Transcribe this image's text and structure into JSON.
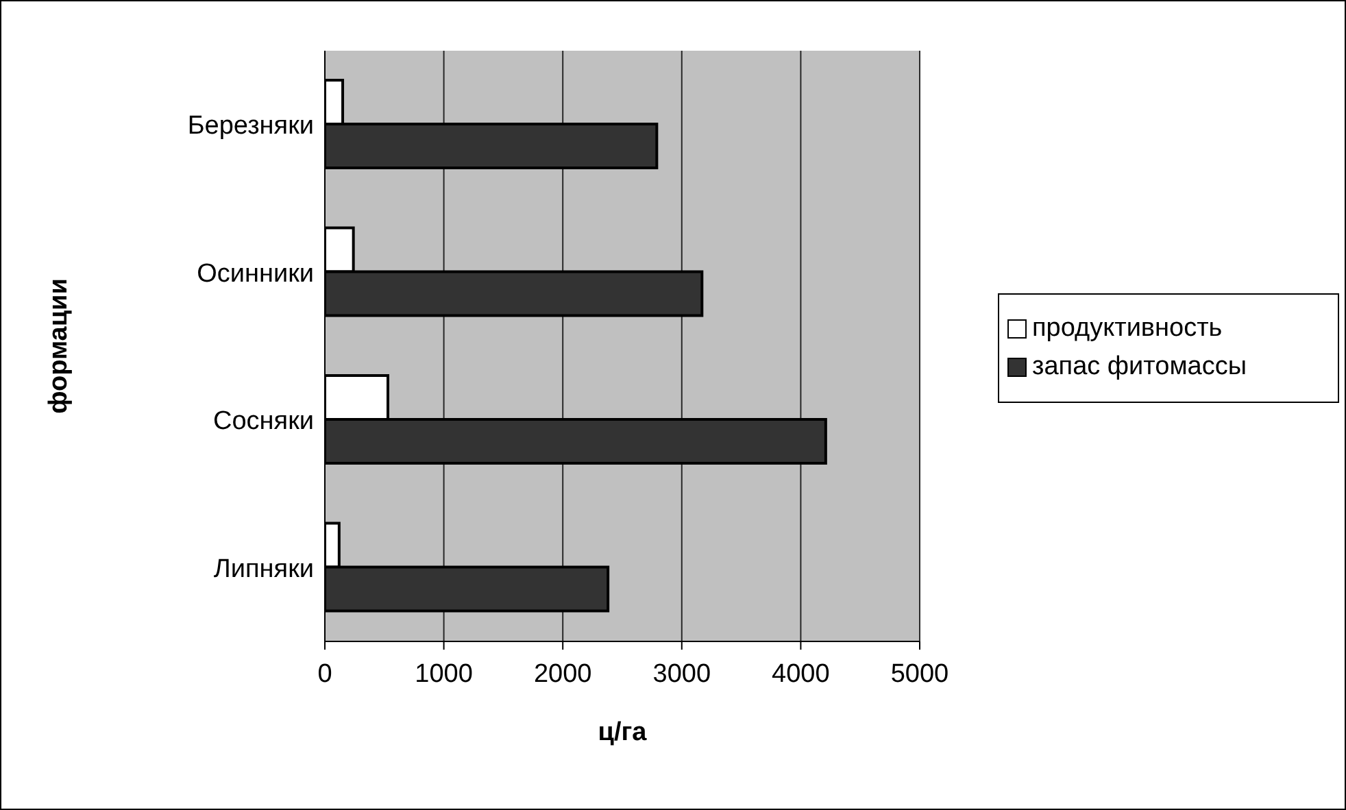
{
  "chart_data": {
    "type": "bar",
    "orientation": "horizontal",
    "xlabel": "ц/га",
    "ylabel": "формации",
    "categories": [
      "Березняки",
      "Осинники",
      "Сосняки",
      "Липняки"
    ],
    "series": [
      {
        "name": "продуктивность",
        "color": "#ffffff",
        "values": [
          150,
          240,
          530,
          120
        ]
      },
      {
        "name": "запас фитомассы",
        "color": "#333333",
        "values": [
          2790,
          3170,
          4210,
          2380
        ]
      }
    ],
    "xlim": [
      0,
      5000
    ],
    "xticks": [
      0,
      1000,
      2000,
      3000,
      4000,
      5000
    ],
    "grid": "x",
    "legend": "right"
  }
}
